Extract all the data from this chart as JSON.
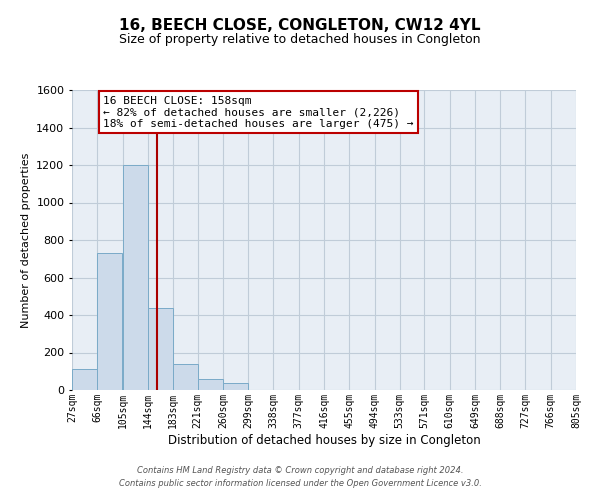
{
  "title": "16, BEECH CLOSE, CONGLETON, CW12 4YL",
  "subtitle": "Size of property relative to detached houses in Congleton",
  "xlabel": "Distribution of detached houses by size in Congleton",
  "ylabel": "Number of detached properties",
  "bin_edges": [
    27,
    66,
    105,
    144,
    183,
    221,
    260,
    299,
    338,
    377,
    416,
    455,
    494,
    533,
    571,
    610,
    649,
    688,
    727,
    766,
    805
  ],
  "bin_counts": [
    110,
    730,
    1200,
    440,
    140,
    60,
    35,
    0,
    0,
    0,
    0,
    0,
    0,
    0,
    0,
    0,
    0,
    0,
    0,
    0
  ],
  "bar_color": "#ccdaea",
  "bar_edge_color": "#7aaac8",
  "property_size": 158,
  "vline_color": "#aa0000",
  "ylim": [
    0,
    1600
  ],
  "yticks": [
    0,
    200,
    400,
    600,
    800,
    1000,
    1200,
    1400,
    1600
  ],
  "tick_labels": [
    "27sqm",
    "66sqm",
    "105sqm",
    "144sqm",
    "183sqm",
    "221sqm",
    "260sqm",
    "299sqm",
    "338sqm",
    "377sqm",
    "416sqm",
    "455sqm",
    "494sqm",
    "533sqm",
    "571sqm",
    "610sqm",
    "649sqm",
    "688sqm",
    "727sqm",
    "766sqm",
    "805sqm"
  ],
  "annotation_title": "16 BEECH CLOSE: 158sqm",
  "annotation_line1": "← 82% of detached houses are smaller (2,226)",
  "annotation_line2": "18% of semi-detached houses are larger (475) →",
  "annotation_box_color": "#ffffff",
  "annotation_box_edge_color": "#bb0000",
  "footer_line1": "Contains HM Land Registry data © Crown copyright and database right 2024.",
  "footer_line2": "Contains public sector information licensed under the Open Government Licence v3.0.",
  "background_color": "#ffffff",
  "axes_bg_color": "#e8eef5",
  "grid_color": "#c0ccd8",
  "title_fontsize": 11,
  "subtitle_fontsize": 9,
  "ylabel_fontsize": 8,
  "xlabel_fontsize": 8.5,
  "tick_fontsize": 7,
  "ytick_fontsize": 8,
  "footer_fontsize": 6,
  "annot_fontsize": 8
}
